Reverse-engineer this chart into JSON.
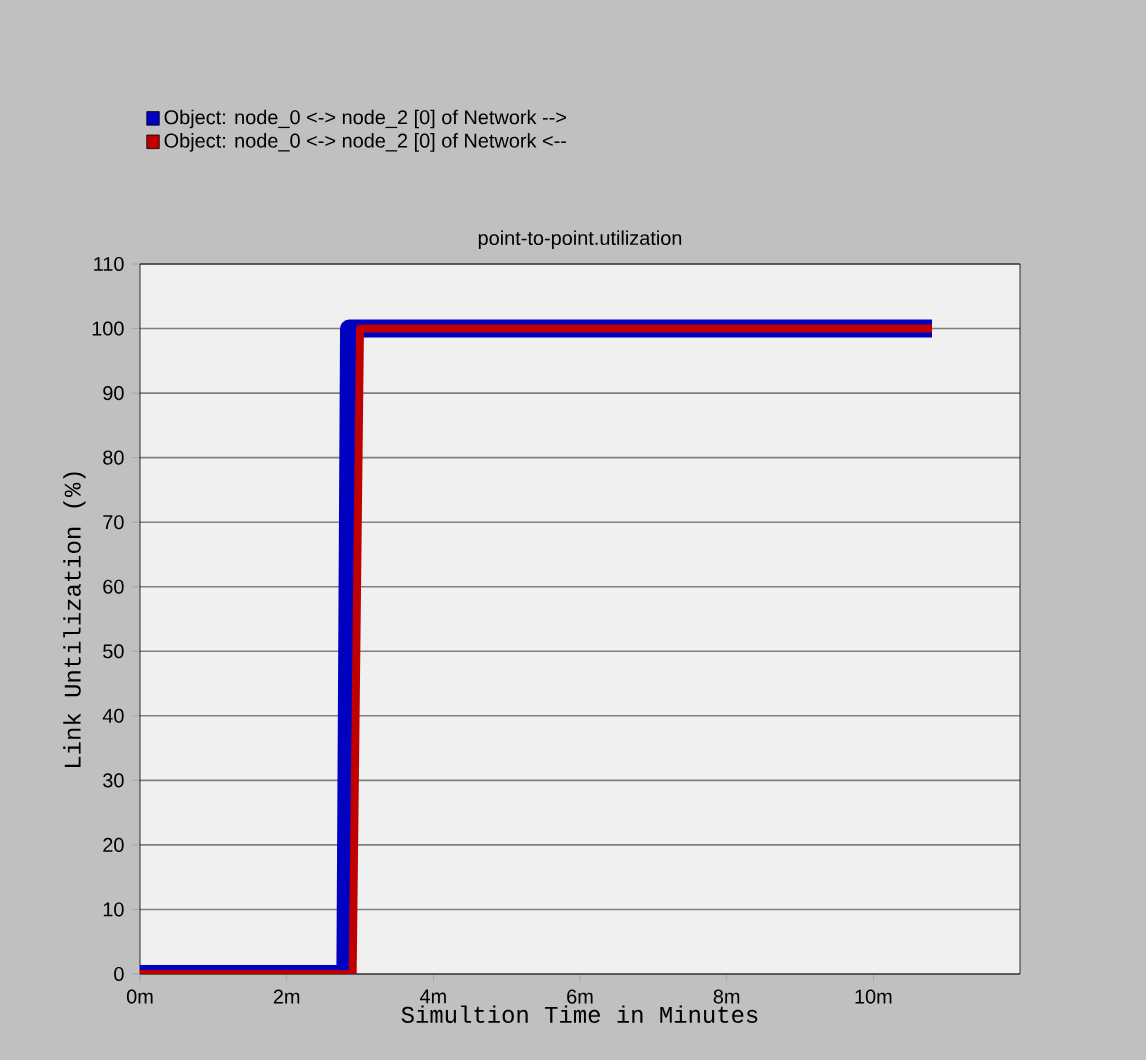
{
  "chart_data": {
    "type": "line",
    "title": "point-to-point.utilization",
    "xlabel": "Simultion Time in Minutes",
    "ylabel": "Link Untilization (%)",
    "x": [
      0,
      2.8,
      2.85,
      10.8
    ],
    "series": [
      {
        "name": "Object: node_0 <-> node_2 [0] of Network -->",
        "color": "#0000c0",
        "values": [
          0,
          0,
          100,
          100
        ]
      },
      {
        "name": "Object: node_0 <-> node_2 [0] of Network <--",
        "color": "#c00000",
        "x": [
          0,
          2.9,
          3.0,
          10.8
        ],
        "values": [
          0,
          0,
          100,
          100
        ]
      }
    ],
    "xlim": [
      0,
      12
    ],
    "ylim": [
      0,
      110
    ],
    "xticks": [
      {
        "value": 0,
        "label": "0m"
      },
      {
        "value": 2,
        "label": "2m"
      },
      {
        "value": 4,
        "label": "4m"
      },
      {
        "value": 6,
        "label": "6m"
      },
      {
        "value": 8,
        "label": "8m"
      },
      {
        "value": 10,
        "label": "10m"
      }
    ],
    "yticks": [
      0,
      10,
      20,
      30,
      40,
      50,
      60,
      70,
      80,
      90,
      100,
      110
    ],
    "grid": "y",
    "legend": "top left",
    "marker": "none",
    "line_style": "solid"
  }
}
